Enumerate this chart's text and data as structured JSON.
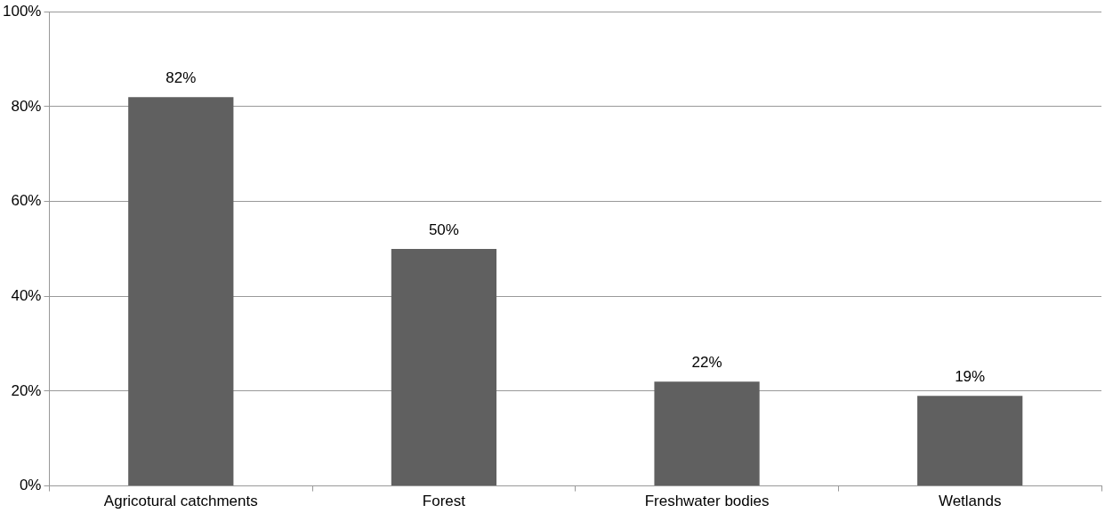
{
  "chart_data": {
    "type": "bar",
    "categories": [
      "Agricotural catchments",
      "Forest",
      "Freshwater bodies",
      "Wetlands"
    ],
    "values": [
      82,
      50,
      22,
      19
    ],
    "value_labels": [
      "82%",
      "50%",
      "22%",
      "19%"
    ],
    "color": "#606060",
    "ylim": [
      0,
      100
    ],
    "yticks": [
      {
        "value": 0,
        "label": "0%"
      },
      {
        "value": 20,
        "label": "20%"
      },
      {
        "value": 40,
        "label": "40%"
      },
      {
        "value": 60,
        "label": "60%"
      },
      {
        "value": 80,
        "label": "80%"
      },
      {
        "value": 100,
        "label": "100%"
      }
    ],
    "grid": "y"
  }
}
